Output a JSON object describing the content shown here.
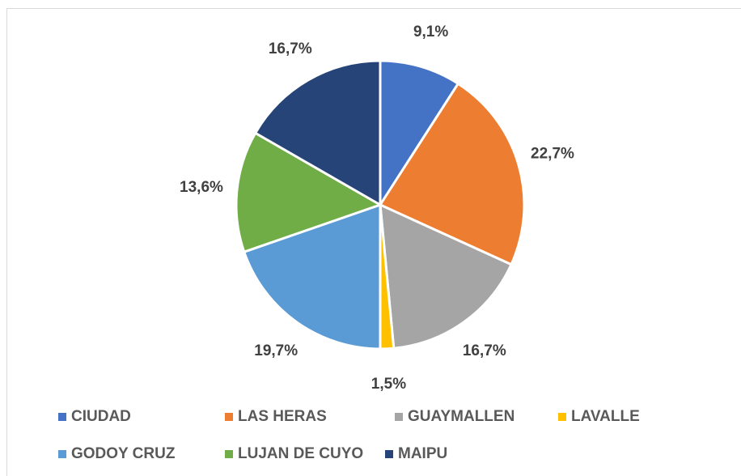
{
  "chart_data": {
    "type": "pie",
    "categories": [
      "CIUDAD",
      "LAS HERAS",
      "GUAYMALLEN",
      "LAVALLE",
      "GODOY CRUZ",
      "LUJAN DE CUYO",
      "MAIPU"
    ],
    "values": [
      9.1,
      22.7,
      16.7,
      1.5,
      19.7,
      13.6,
      16.7
    ],
    "value_labels": [
      "9,1%",
      "22,7%",
      "16,7%",
      "1,5%",
      "19,7%",
      "13,6%",
      "16,7%"
    ],
    "colors": [
      "#4472c4",
      "#ed7d31",
      "#a5a5a5",
      "#ffc000",
      "#5b9bd5",
      "#70ad47",
      "#264478"
    ],
    "legend": "bottom"
  }
}
